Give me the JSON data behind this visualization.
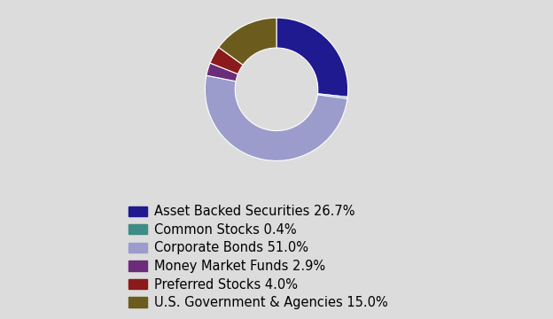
{
  "labels": [
    "Asset Backed Securities 26.7%",
    "Common Stocks 0.4%",
    "Corporate Bonds 51.0%",
    "Money Market Funds 2.9%",
    "Preferred Stocks 4.0%",
    "U.S. Government & Agencies 15.0%"
  ],
  "values": [
    26.7,
    0.4,
    51.0,
    2.9,
    4.0,
    15.0
  ],
  "colors": [
    "#1f1a8f",
    "#3d8c85",
    "#9b9bcc",
    "#6b2d7a",
    "#8b1a1a",
    "#6b5c1e"
  ],
  "background_color": "#dcdcdc",
  "legend_fontsize": 10.5,
  "donut_width": 0.42,
  "startangle": 90
}
